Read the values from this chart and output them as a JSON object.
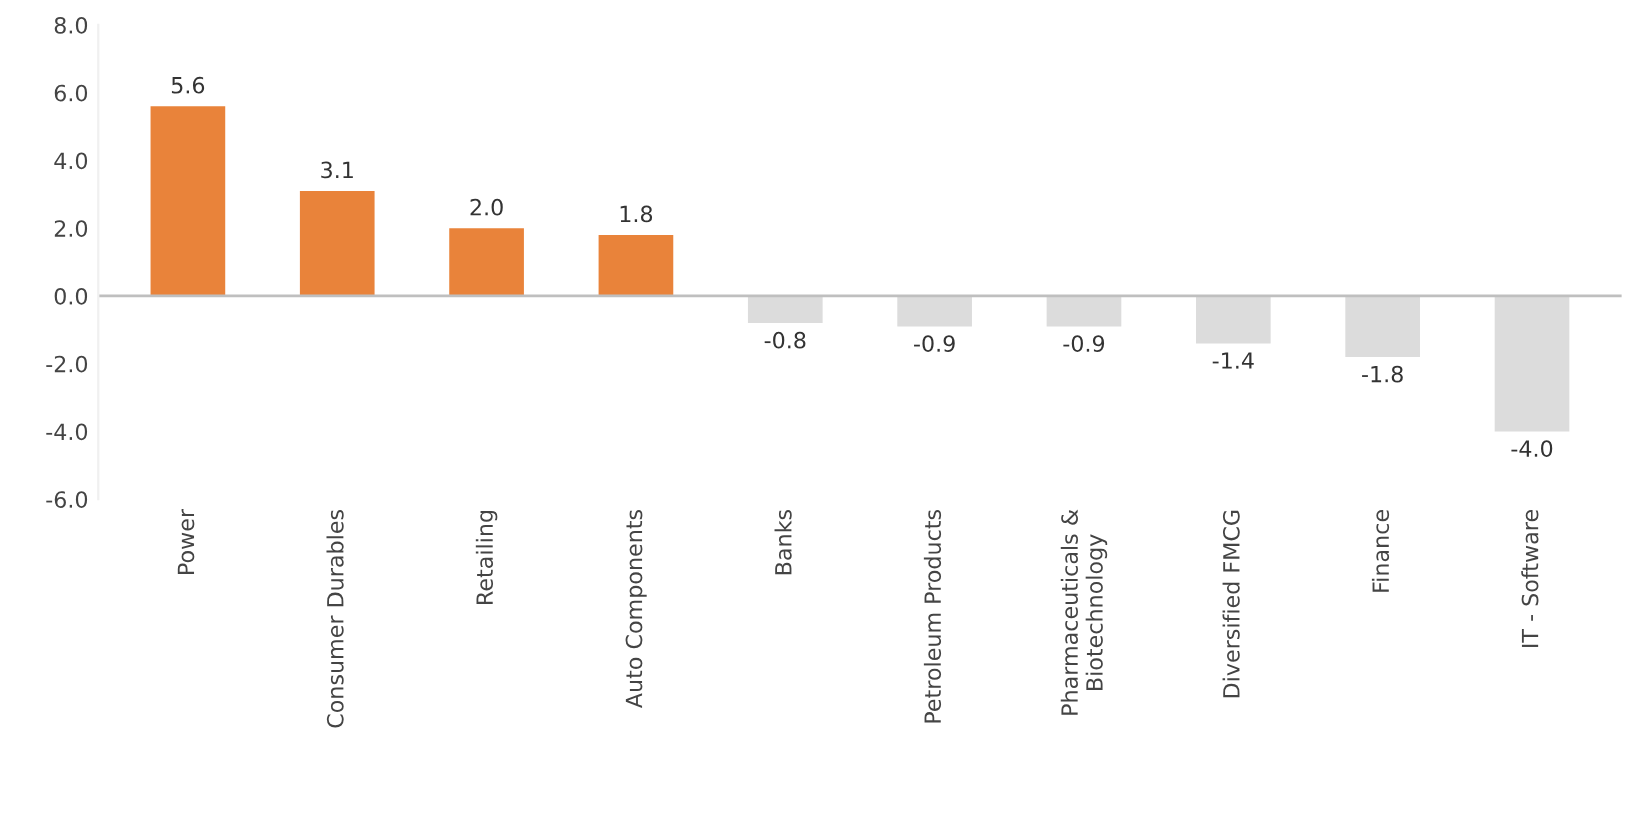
{
  "chart_data": {
    "type": "bar",
    "categories": [
      "Power",
      "Consumer Durables",
      "Retailing",
      "Auto Components",
      "Banks",
      "Petroleum Products",
      "Pharmaceuticals &\nBiotechnology",
      "Diversified FMCG",
      "Finance",
      "IT - Software"
    ],
    "values": [
      5.6,
      3.1,
      2.0,
      1.8,
      -0.8,
      -0.9,
      -0.9,
      -1.4,
      -1.8,
      -4.0
    ],
    "value_labels": [
      "5.6",
      "3.1",
      "2.0",
      "1.8",
      "-0.8",
      "-0.9",
      "-0.9",
      "-1.4",
      "-1.8",
      "-4.0"
    ],
    "colors": [
      "#e9833a",
      "#e9833a",
      "#e9833a",
      "#e9833a",
      "#dcdcdc",
      "#dcdcdc",
      "#dcdcdc",
      "#dcdcdc",
      "#dcdcdc",
      "#dcdcdc"
    ],
    "ylim": [
      -6,
      8
    ],
    "yticks": [
      {
        "value": -6,
        "label": "-6.0"
      },
      {
        "value": -4,
        "label": "-4.0"
      },
      {
        "value": -2,
        "label": "-2.0"
      },
      {
        "value": 0,
        "label": "0.0"
      },
      {
        "value": 2,
        "label": "2.0"
      },
      {
        "value": 4,
        "label": "4.0"
      },
      {
        "value": 6,
        "label": "6.0"
      },
      {
        "value": 8,
        "label": "8.0"
      }
    ],
    "ref_lines": [
      {
        "axis": "y",
        "value": 0,
        "color": "#bfbfbf"
      }
    ],
    "grid": false,
    "legend": false
  }
}
